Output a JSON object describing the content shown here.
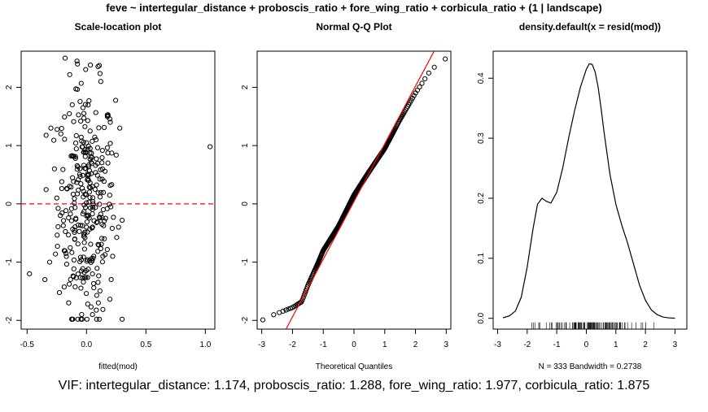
{
  "figure_title": "feve ~ intertegular_distance + proboscis_ratio + fore_wing_ratio + corbicula_ratio + (1 | landscape)",
  "footer_text": "VIF: intertegular_distance: 1.174, proboscis_ratio: 1.288, fore_wing_ratio: 1.977, corbicula_ratio: 1.875",
  "colors": {
    "points": "#000000",
    "ref_line": "#ff0000",
    "hline": "#ff0000",
    "density": "#000000"
  },
  "chart_data": [
    {
      "type": "scatter",
      "title": "Scale-location plot",
      "xlabel": "fitted(mod)",
      "ylabel": "",
      "xlim": [
        -0.55,
        1.08
      ],
      "ylim": [
        -2.15,
        2.62
      ],
      "xticks": [
        "-0.5",
        "0.0",
        "0.5",
        "1.0"
      ],
      "xtick_values": [
        -0.5,
        0.0,
        0.5,
        1.0
      ],
      "yticks": [
        "-2",
        "-1",
        "0",
        "1",
        "2"
      ],
      "ytick_values": [
        -2,
        -1,
        0,
        1,
        2
      ],
      "reference_hline": {
        "y": 0,
        "style": "dashed"
      },
      "n_points": 333,
      "points_visible_sample": [
        [
          -0.48,
          -1.2
        ],
        [
          -0.35,
          -1.3
        ],
        [
          -0.31,
          -1.0
        ],
        [
          -0.3,
          1.3
        ],
        [
          -0.27,
          0.6
        ],
        [
          -0.25,
          0.1
        ],
        [
          -0.22,
          -0.2
        ],
        [
          -0.18,
          2.5
        ],
        [
          -0.15,
          -1.7
        ],
        [
          -0.12,
          1.7
        ],
        [
          -0.08,
          2.45
        ],
        [
          -0.03,
          1.65
        ],
        [
          0.0,
          -0.4
        ],
        [
          0.02,
          0.5
        ],
        [
          0.05,
          -1.9
        ],
        [
          0.08,
          1.1
        ],
        [
          0.1,
          -1.7
        ],
        [
          0.12,
          2.1
        ],
        [
          0.15,
          -0.6
        ],
        [
          0.18,
          0.7
        ],
        [
          0.2,
          1.4
        ],
        [
          0.22,
          -0.9
        ],
        [
          0.28,
          1.3
        ],
        [
          1.04,
          0.98
        ]
      ]
    },
    {
      "type": "scatter",
      "title": "Normal Q-Q Plot",
      "xlabel": "Theoretical Quantiles",
      "ylabel": "",
      "xlim": [
        -3.15,
        3.15
      ],
      "ylim": [
        -2.15,
        2.62
      ],
      "xticks": [
        "-3",
        "-2",
        "-1",
        "0",
        "1",
        "2",
        "3"
      ],
      "xtick_values": [
        -3,
        -2,
        -1,
        0,
        1,
        2,
        3
      ],
      "yticks": [
        "-2",
        "-1",
        "0",
        "1",
        "2"
      ],
      "ytick_values": [
        -2,
        -1,
        0,
        1,
        2
      ],
      "n_points": 333,
      "reference_line": {
        "intercept": 0.04,
        "slope": 0.99
      },
      "qq_curve_anchors": [
        [
          -3.0,
          -2.0
        ],
        [
          -2.6,
          -1.9
        ],
        [
          -2.0,
          -1.78
        ],
        [
          -1.7,
          -1.68
        ],
        [
          -1.5,
          -1.4
        ],
        [
          -1.2,
          -1.05
        ],
        [
          -1.0,
          -0.8
        ],
        [
          -0.5,
          -0.38
        ],
        [
          0.0,
          0.15
        ],
        [
          0.5,
          0.56
        ],
        [
          1.0,
          0.95
        ],
        [
          1.5,
          1.45
        ],
        [
          2.0,
          1.9
        ],
        [
          2.5,
          2.3
        ],
        [
          3.0,
          2.5
        ]
      ]
    },
    {
      "type": "line",
      "title": "density.default(x = resid(mod))",
      "xlabel": "N = 333   Bandwidth = 0.2738",
      "ylabel": "",
      "xlim": [
        -3.15,
        3.4
      ],
      "ylim": [
        -0.018,
        0.445
      ],
      "xticks": [
        "-3",
        "-2",
        "-1",
        "0",
        "1",
        "2",
        "3"
      ],
      "xtick_values": [
        -3,
        -2,
        -1,
        0,
        1,
        2,
        3
      ],
      "yticks": [
        "0.0",
        "0.1",
        "0.2",
        "0.3",
        "0.4"
      ],
      "ytick_values": [
        0.0,
        0.1,
        0.2,
        0.3,
        0.4
      ],
      "x": [
        -2.82,
        -2.6,
        -2.4,
        -2.2,
        -2.0,
        -1.8,
        -1.65,
        -1.5,
        -1.35,
        -1.2,
        -1.0,
        -0.8,
        -0.6,
        -0.4,
        -0.2,
        0.0,
        0.1,
        0.2,
        0.3,
        0.4,
        0.5,
        0.6,
        0.8,
        1.0,
        1.2,
        1.4,
        1.6,
        1.8,
        2.0,
        2.2,
        2.4,
        2.6,
        2.8,
        3.0
      ],
      "y": [
        0.001,
        0.004,
        0.012,
        0.035,
        0.085,
        0.15,
        0.19,
        0.2,
        0.195,
        0.192,
        0.21,
        0.25,
        0.3,
        0.345,
        0.385,
        0.415,
        0.424,
        0.423,
        0.41,
        0.385,
        0.35,
        0.31,
        0.24,
        0.19,
        0.155,
        0.125,
        0.09,
        0.055,
        0.03,
        0.014,
        0.006,
        0.002,
        0.0007,
        0.0001
      ],
      "rug_range": [
        -1.98,
        2.5
      ]
    }
  ]
}
